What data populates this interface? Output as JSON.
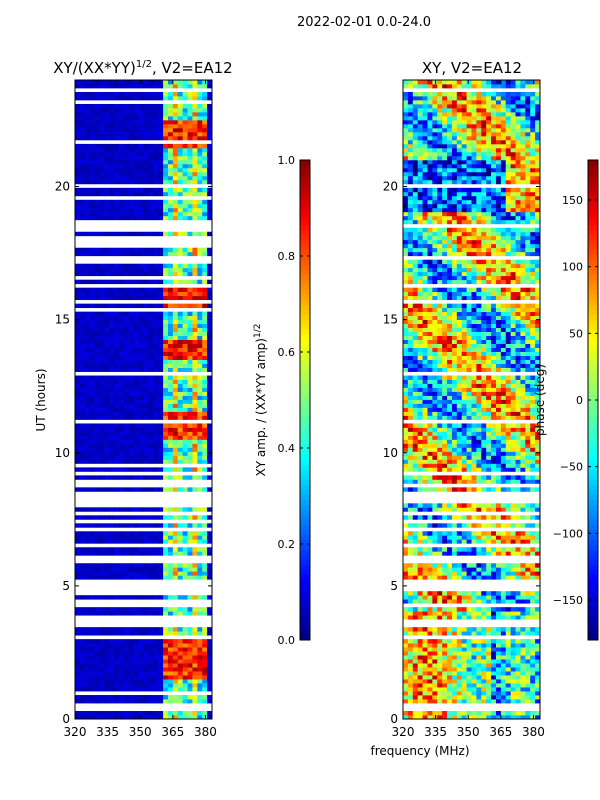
{
  "suptitle": "2022-02-01 0.0-24.0",
  "colors": {
    "jet": [
      "#00007f",
      "#0000ff",
      "#007fff",
      "#00ffff",
      "#7fff7f",
      "#ffff00",
      "#ff7f00",
      "#ff0000",
      "#7f0000"
    ],
    "gap": "#ffffff",
    "frame": "#000000"
  },
  "chart_data": [
    {
      "type": "heatmap",
      "title": "XY/(XX*YY)^1/2, V2=EA12",
      "title_parts": [
        "XY/(XX*YY)",
        "1/2",
        ", V2=EA12"
      ],
      "xlabel": "",
      "ylabel": "UT (hours)",
      "xlim": [
        320,
        383
      ],
      "ylim": [
        0,
        24
      ],
      "xticks": [
        320,
        335,
        350,
        365,
        380
      ],
      "yticks": [
        0,
        5,
        10,
        15,
        20
      ],
      "colorbar": {
        "label": "XY amp. / (XX*YY amp)^1/2",
        "label_parts": [
          "XY amp. / (XX*YY amp)",
          "1/2"
        ],
        "range": [
          0.0,
          1.0
        ],
        "ticks": [
          "0.0",
          "0.2",
          "0.4",
          "0.6",
          "0.8",
          "1.0"
        ],
        "tick_values": [
          0.0,
          0.2,
          0.4,
          0.6,
          0.8,
          1.0
        ]
      },
      "active_band_MHz": [
        360,
        381
      ],
      "high_amplitude_hours": [
        [
          1.5,
          3.0
        ],
        [
          10.5,
          11.5
        ],
        [
          13.5,
          14.3
        ],
        [
          15.5,
          16.2
        ],
        [
          21.5,
          22.5
        ]
      ]
    },
    {
      "type": "heatmap",
      "title": "XY, V2=EA12",
      "xlabel": "frequency (MHz)",
      "ylabel": "",
      "xlim": [
        320,
        383
      ],
      "ylim": [
        0,
        24
      ],
      "xticks": [
        320,
        335,
        350,
        365,
        380
      ],
      "yticks": [
        0,
        5,
        10,
        15,
        20
      ],
      "colorbar": {
        "label": "phase (deg)",
        "range": [
          -180,
          180
        ],
        "ticks": [
          "150",
          "100",
          "50",
          "0",
          "−50",
          "−100",
          "−150"
        ],
        "tick_values": [
          150,
          100,
          50,
          0,
          -50,
          -100,
          -150
        ]
      }
    }
  ]
}
